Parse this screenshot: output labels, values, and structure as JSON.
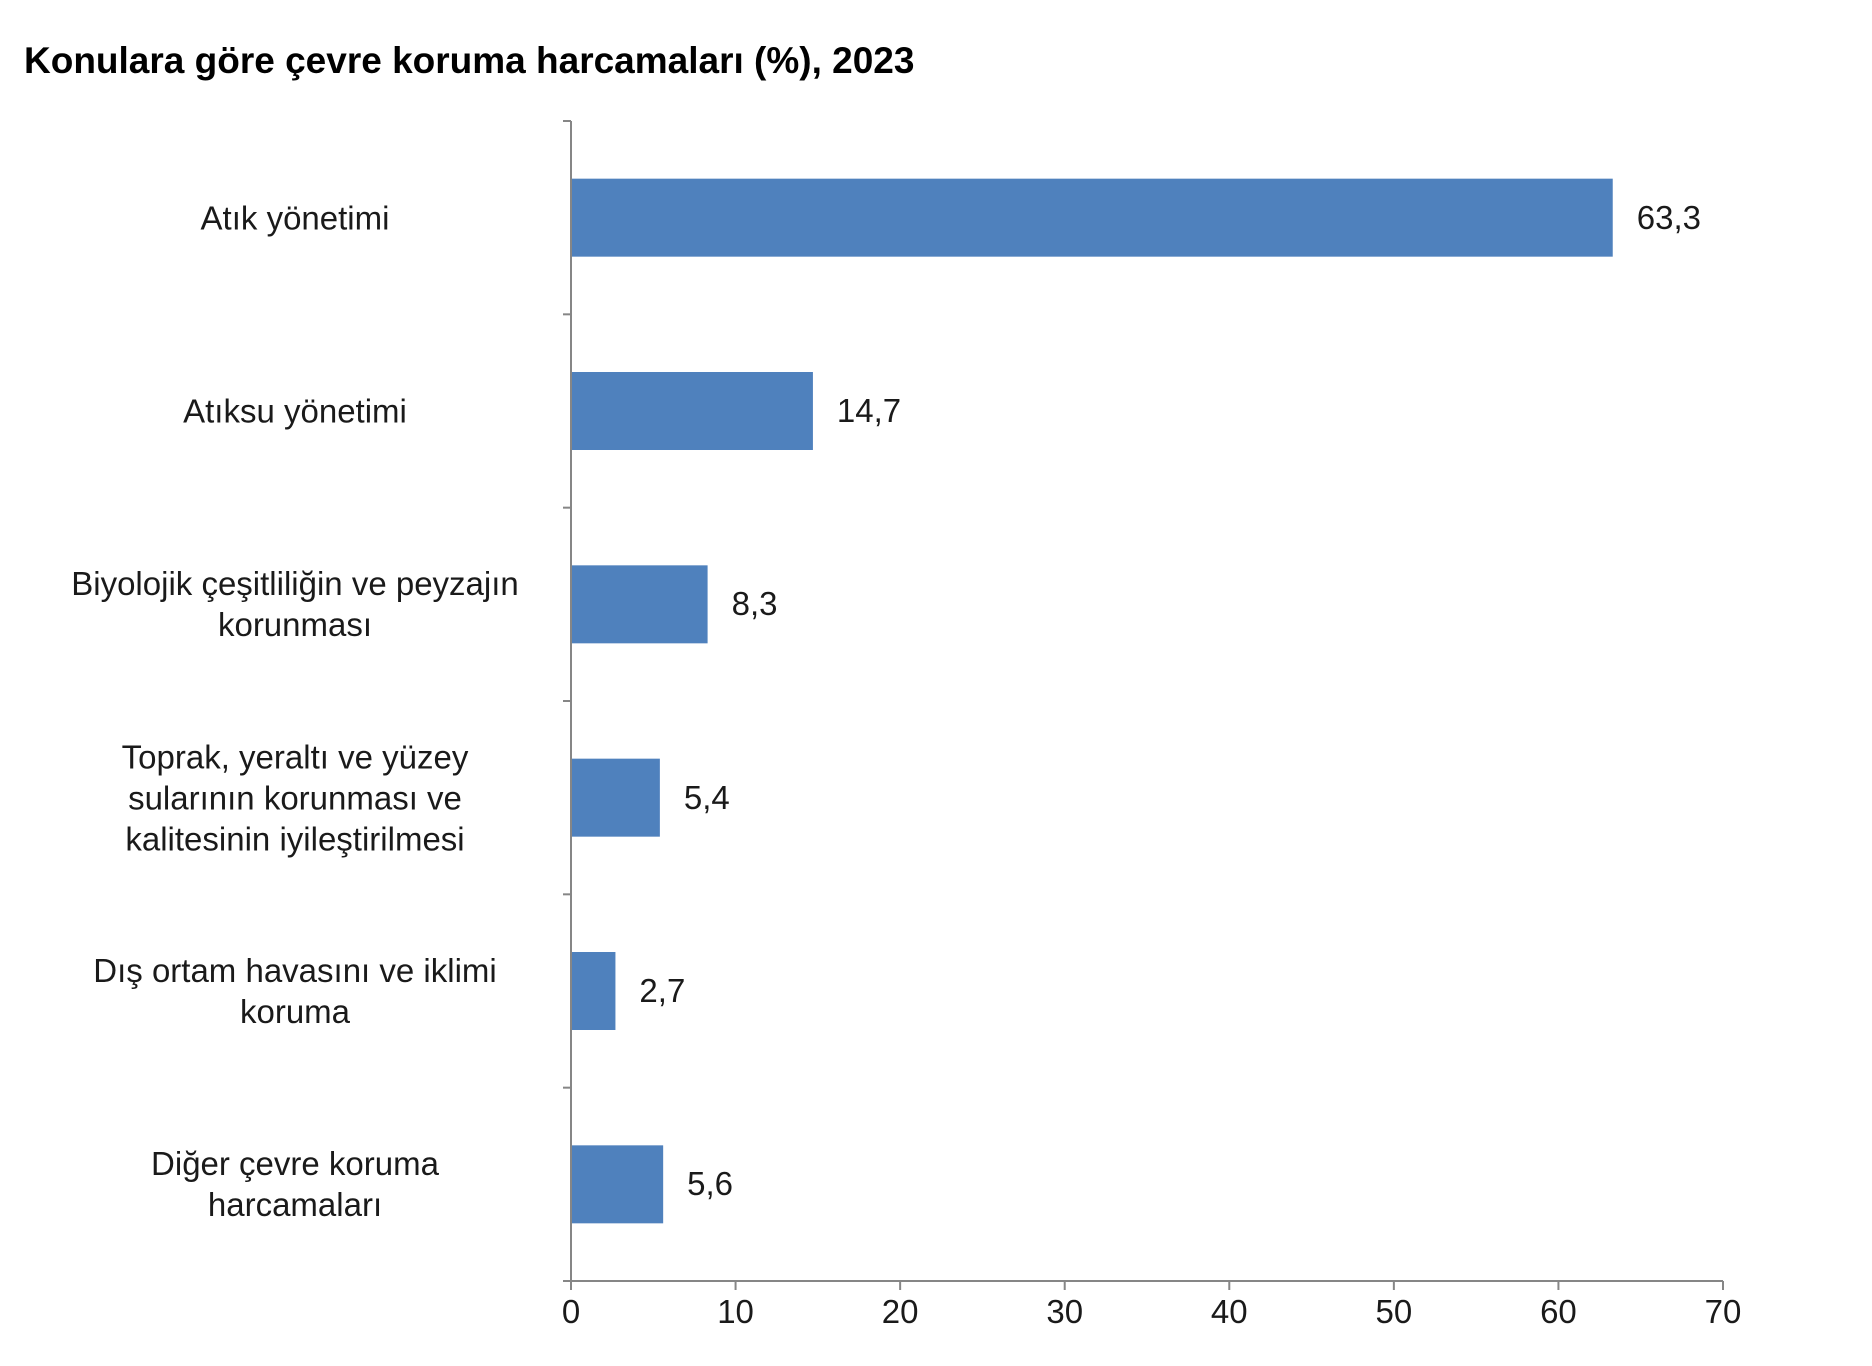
{
  "chart_data": {
    "type": "bar",
    "orientation": "horizontal",
    "title": "Konulara göre çevre koruma harcamaları (%), 2023",
    "categories": [
      "Atık yönetimi",
      "Atıksu yönetimi",
      "Biyolojik çeşitliliğin ve peyzajın korunması",
      "Toprak, yeraltı ve yüzey sularının korunması ve kalitesinin iyileştirilmesi",
      "Dış ortam havasını ve iklimi koruma",
      "Diğer çevre koruma harcamaları"
    ],
    "category_lines": [
      [
        "Atık yönetimi"
      ],
      [
        "Atıksu yönetimi"
      ],
      [
        "Biyolojik çeşitliliğin ve peyzajın",
        "korunması"
      ],
      [
        "Toprak, yeraltı ve yüzey",
        "sularının korunması ve",
        "kalitesinin iyileştirilmesi"
      ],
      [
        "Dış ortam havasını ve iklimi",
        "koruma"
      ],
      [
        "Diğer çevre koruma",
        "harcamaları"
      ]
    ],
    "values": [
      63.3,
      14.7,
      8.3,
      5.4,
      2.7,
      5.6
    ],
    "value_labels": [
      "63,3",
      "14,7",
      "8,3",
      "5,4",
      "2,7",
      "5,6"
    ],
    "xlim": [
      0,
      70
    ],
    "xticks": [
      0,
      10,
      20,
      30,
      40,
      50,
      60,
      70
    ],
    "xlabel": "",
    "ylabel": "",
    "grid": false,
    "legend": "none",
    "bar_color": "#4f81bd",
    "axis_color": "#868686"
  }
}
